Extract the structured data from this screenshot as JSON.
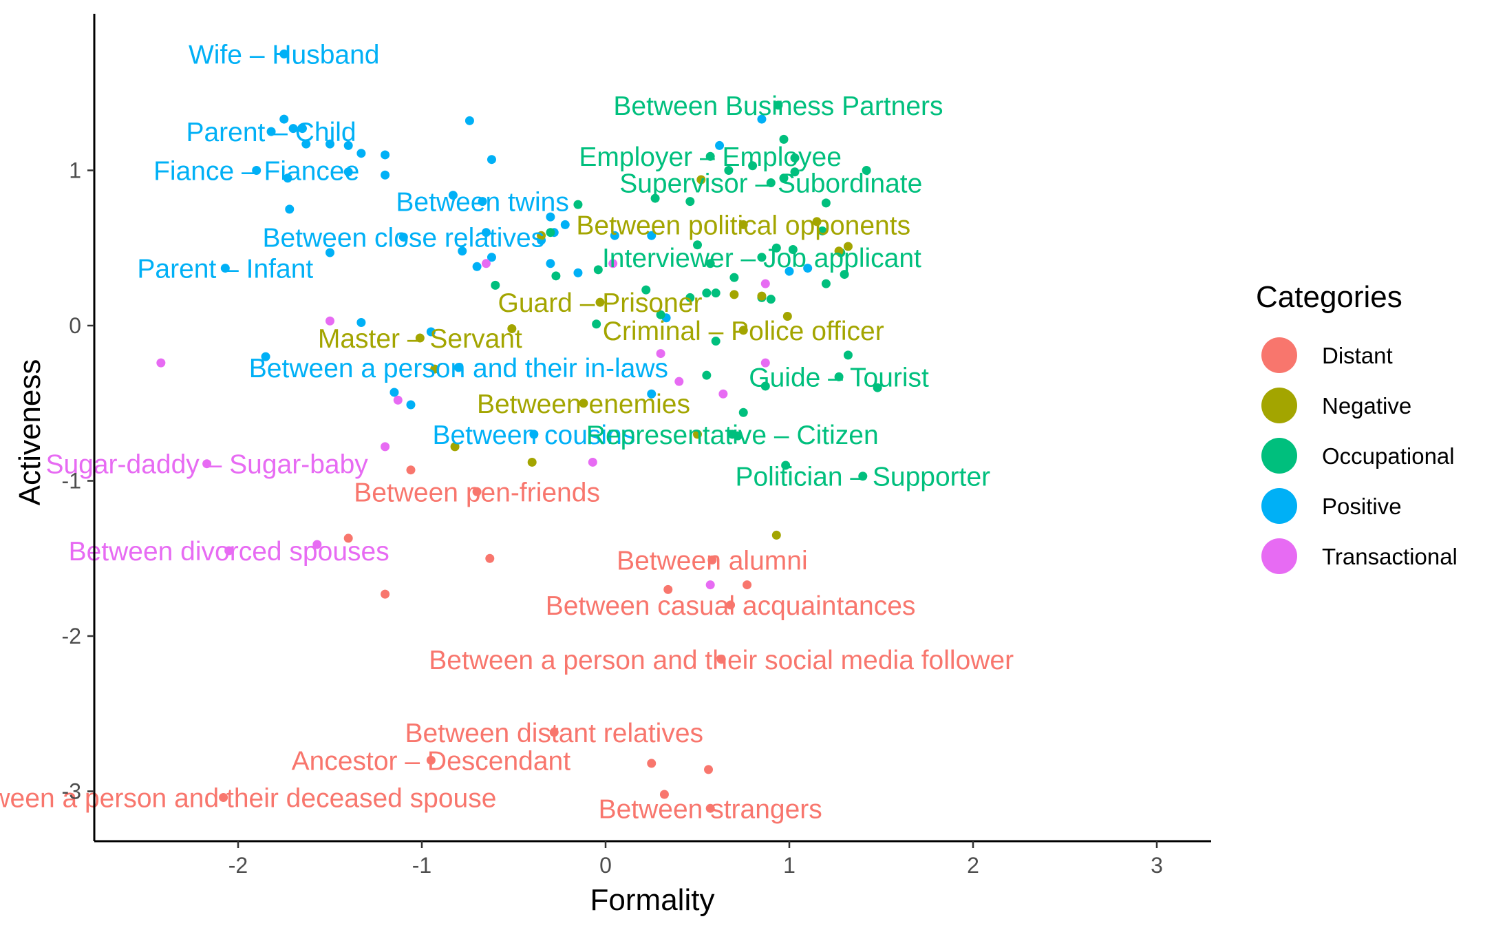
{
  "chart_data": {
    "type": "scatter",
    "title": "",
    "xlabel": "Formality",
    "ylabel": "Activeness",
    "xlim": [
      -2.8,
      3.3
    ],
    "ylim": [
      -3.35,
      2.0
    ],
    "xticks": [
      -2,
      -1,
      0,
      1,
      2,
      3
    ],
    "yticks": [
      -3,
      -2,
      -1,
      0,
      1
    ],
    "xtick_labels": [
      "-2",
      "-1",
      "0",
      "1",
      "2",
      "3"
    ],
    "ytick_labels": [
      "-3",
      "-2",
      "-1",
      "0",
      "1"
    ],
    "grid": false,
    "legend_position": "right",
    "legend": {
      "title": "Categories",
      "entries": [
        {
          "name": "Distant",
          "color": "#F8766D"
        },
        {
          "name": "Negative",
          "color": "#A3A500"
        },
        {
          "name": "Occupational",
          "color": "#00BF7D"
        },
        {
          "name": "Positive",
          "color": "#00B0F6"
        },
        {
          "name": "Transactional",
          "color": "#E76BF3"
        }
      ]
    },
    "labels": [
      {
        "text": "Wife – Husband",
        "category": "Positive",
        "x": -1.75,
        "y": 1.75
      },
      {
        "text": "Parent – Child",
        "category": "Positive",
        "x": -1.82,
        "y": 1.25
      },
      {
        "text": "Fiance – Fiancee",
        "category": "Positive",
        "x": -1.9,
        "y": 1.0
      },
      {
        "text": "Between twins",
        "category": "Positive",
        "x": -0.67,
        "y": 0.8
      },
      {
        "text": "Between close relatives",
        "category": "Positive",
        "x": -1.1,
        "y": 0.57
      },
      {
        "text": "Parent – Infant",
        "category": "Positive",
        "x": -2.07,
        "y": 0.37
      },
      {
        "text": "Between a person and their in-laws",
        "category": "Positive",
        "x": -0.8,
        "y": -0.27
      },
      {
        "text": "Between cousins",
        "category": "Positive",
        "x": -0.39,
        "y": -0.7
      },
      {
        "text": "Between Business Partners",
        "category": "Occupational",
        "x": 0.94,
        "y": 1.42
      },
      {
        "text": "Employer – Employee",
        "category": "Occupational",
        "x": 0.57,
        "y": 1.09
      },
      {
        "text": "Supervisor – Subordinate",
        "category": "Occupational",
        "x": 0.9,
        "y": 0.92
      },
      {
        "text": "Interviewer – Job applicant",
        "category": "Occupational",
        "x": 0.85,
        "y": 0.44
      },
      {
        "text": "Guide – Tourist",
        "category": "Occupational",
        "x": 1.27,
        "y": -0.33
      },
      {
        "text": "Representative – Citizen",
        "category": "Occupational",
        "x": 0.69,
        "y": -0.7
      },
      {
        "text": "Politician – Supporter",
        "category": "Occupational",
        "x": 1.4,
        "y": -0.97
      },
      {
        "text": "Between political opponents",
        "category": "Negative",
        "x": 0.75,
        "y": 0.65
      },
      {
        "text": "Guard – Prisoner",
        "category": "Negative",
        "x": -0.03,
        "y": 0.15
      },
      {
        "text": "Criminal – Police officer",
        "category": "Negative",
        "x": 0.75,
        "y": -0.03
      },
      {
        "text": "Master – Servant",
        "category": "Negative",
        "x": -1.01,
        "y": -0.08
      },
      {
        "text": "Between enemies",
        "category": "Negative",
        "x": -0.12,
        "y": -0.5
      },
      {
        "text": "Sugar-daddy – Sugar-baby",
        "category": "Transactional",
        "x": -2.17,
        "y": -0.89
      },
      {
        "text": "Between divorced spouses",
        "category": "Transactional",
        "x": -2.05,
        "y": -1.45
      },
      {
        "text": "Between pen-friends",
        "category": "Distant",
        "x": -0.7,
        "y": -1.07
      },
      {
        "text": "Between alumni",
        "category": "Distant",
        "x": 0.58,
        "y": -1.51
      },
      {
        "text": "Between casual acquaintances",
        "category": "Distant",
        "x": 0.68,
        "y": -1.8
      },
      {
        "text": "Between a person and their social media follower",
        "category": "Distant",
        "x": 0.63,
        "y": -2.15
      },
      {
        "text": "Between distant relatives",
        "category": "Distant",
        "x": -0.28,
        "y": -2.62
      },
      {
        "text": "Ancestor – Descendant",
        "category": "Distant",
        "x": -0.95,
        "y": -2.8
      },
      {
        "text": "Between a person and their deceased spouse",
        "category": "Distant",
        "x": -2.08,
        "y": -3.04
      },
      {
        "text": "Between strangers",
        "category": "Distant",
        "x": 0.57,
        "y": -3.11
      }
    ],
    "points": [
      {
        "category": "Positive",
        "x": -1.7,
        "y": 1.27
      },
      {
        "category": "Positive",
        "x": -1.75,
        "y": 1.33
      },
      {
        "category": "Positive",
        "x": -1.65,
        "y": 1.27
      },
      {
        "category": "Positive",
        "x": -1.63,
        "y": 1.17
      },
      {
        "category": "Positive",
        "x": -1.5,
        "y": 1.17
      },
      {
        "category": "Positive",
        "x": -1.4,
        "y": 1.16
      },
      {
        "category": "Positive",
        "x": -1.33,
        "y": 1.11
      },
      {
        "category": "Positive",
        "x": -1.2,
        "y": 1.1
      },
      {
        "category": "Positive",
        "x": -1.4,
        "y": 0.99
      },
      {
        "category": "Positive",
        "x": -1.2,
        "y": 0.97
      },
      {
        "category": "Positive",
        "x": -1.73,
        "y": 0.95
      },
      {
        "category": "Positive",
        "x": -1.72,
        "y": 0.75
      },
      {
        "category": "Positive",
        "x": -0.74,
        "y": 1.32
      },
      {
        "category": "Positive",
        "x": -0.62,
        "y": 1.07
      },
      {
        "category": "Positive",
        "x": -0.83,
        "y": 0.84
      },
      {
        "category": "Positive",
        "x": -0.3,
        "y": 0.7
      },
      {
        "category": "Positive",
        "x": -0.22,
        "y": 0.65
      },
      {
        "category": "Positive",
        "x": -0.28,
        "y": 0.6
      },
      {
        "category": "Positive",
        "x": -0.65,
        "y": 0.6
      },
      {
        "category": "Positive",
        "x": -0.35,
        "y": 0.55
      },
      {
        "category": "Positive",
        "x": -0.78,
        "y": 0.48
      },
      {
        "category": "Positive",
        "x": -0.62,
        "y": 0.44
      },
      {
        "category": "Positive",
        "x": -0.7,
        "y": 0.38
      },
      {
        "category": "Positive",
        "x": -1.5,
        "y": 0.47
      },
      {
        "category": "Positive",
        "x": -0.3,
        "y": 0.4
      },
      {
        "category": "Positive",
        "x": -0.15,
        "y": 0.34
      },
      {
        "category": "Positive",
        "x": 0.05,
        "y": 0.58
      },
      {
        "category": "Positive",
        "x": 0.25,
        "y": 0.58
      },
      {
        "category": "Positive",
        "x": 0.62,
        "y": 1.16
      },
      {
        "category": "Positive",
        "x": 0.85,
        "y": 1.33
      },
      {
        "category": "Positive",
        "x": 1.0,
        "y": 0.35
      },
      {
        "category": "Positive",
        "x": 1.1,
        "y": 0.37
      },
      {
        "category": "Positive",
        "x": 0.33,
        "y": 0.05
      },
      {
        "category": "Positive",
        "x": -1.33,
        "y": 0.02
      },
      {
        "category": "Positive",
        "x": -0.95,
        "y": -0.04
      },
      {
        "category": "Positive",
        "x": -1.85,
        "y": -0.2
      },
      {
        "category": "Positive",
        "x": -1.15,
        "y": -0.43
      },
      {
        "category": "Positive",
        "x": -1.06,
        "y": -0.51
      },
      {
        "category": "Positive",
        "x": 0.25,
        "y": -0.44
      },
      {
        "category": "Occupational",
        "x": 0.97,
        "y": 1.2
      },
      {
        "category": "Occupational",
        "x": 1.03,
        "y": 1.08
      },
      {
        "category": "Occupational",
        "x": 0.8,
        "y": 1.03
      },
      {
        "category": "Occupational",
        "x": 0.67,
        "y": 1.0
      },
      {
        "category": "Occupational",
        "x": 1.03,
        "y": 0.99
      },
      {
        "category": "Occupational",
        "x": 1.42,
        "y": 1.0
      },
      {
        "category": "Occupational",
        "x": 0.97,
        "y": 0.95
      },
      {
        "category": "Occupational",
        "x": 0.27,
        "y": 0.82
      },
      {
        "category": "Occupational",
        "x": 0.46,
        "y": 0.8
      },
      {
        "category": "Occupational",
        "x": 1.2,
        "y": 0.79
      },
      {
        "category": "Occupational",
        "x": -0.15,
        "y": 0.78
      },
      {
        "category": "Occupational",
        "x": 1.18,
        "y": 0.61
      },
      {
        "category": "Occupational",
        "x": -0.3,
        "y": 0.6
      },
      {
        "category": "Occupational",
        "x": 0.5,
        "y": 0.52
      },
      {
        "category": "Occupational",
        "x": 0.93,
        "y": 0.5
      },
      {
        "category": "Occupational",
        "x": 1.02,
        "y": 0.49
      },
      {
        "category": "Occupational",
        "x": 1.28,
        "y": 0.47
      },
      {
        "category": "Occupational",
        "x": 0.57,
        "y": 0.4
      },
      {
        "category": "Occupational",
        "x": -0.04,
        "y": 0.36
      },
      {
        "category": "Occupational",
        "x": -0.27,
        "y": 0.32
      },
      {
        "category": "Occupational",
        "x": 0.7,
        "y": 0.31
      },
      {
        "category": "Occupational",
        "x": 1.3,
        "y": 0.33
      },
      {
        "category": "Occupational",
        "x": 1.2,
        "y": 0.27
      },
      {
        "category": "Occupational",
        "x": -0.6,
        "y": 0.26
      },
      {
        "category": "Occupational",
        "x": 0.22,
        "y": 0.23
      },
      {
        "category": "Occupational",
        "x": 0.55,
        "y": 0.21
      },
      {
        "category": "Occupational",
        "x": 0.6,
        "y": 0.21
      },
      {
        "category": "Occupational",
        "x": 0.46,
        "y": 0.18
      },
      {
        "category": "Occupational",
        "x": 0.85,
        "y": 0.18
      },
      {
        "category": "Occupational",
        "x": 0.9,
        "y": 0.17
      },
      {
        "category": "Occupational",
        "x": 0.3,
        "y": 0.07
      },
      {
        "category": "Occupational",
        "x": -0.05,
        "y": 0.01
      },
      {
        "category": "Occupational",
        "x": 0.6,
        "y": -0.1
      },
      {
        "category": "Occupational",
        "x": 1.32,
        "y": -0.19
      },
      {
        "category": "Occupational",
        "x": 0.55,
        "y": -0.32
      },
      {
        "category": "Occupational",
        "x": 0.87,
        "y": -0.39
      },
      {
        "category": "Occupational",
        "x": 1.48,
        "y": -0.4
      },
      {
        "category": "Occupational",
        "x": 0.75,
        "y": -0.56
      },
      {
        "category": "Occupational",
        "x": 0.72,
        "y": -0.71
      },
      {
        "category": "Occupational",
        "x": 0.98,
        "y": -0.9
      },
      {
        "category": "Negative",
        "x": 0.52,
        "y": 0.94
      },
      {
        "category": "Negative",
        "x": 1.15,
        "y": 0.67
      },
      {
        "category": "Negative",
        "x": 1.32,
        "y": 0.51
      },
      {
        "category": "Negative",
        "x": 1.27,
        "y": 0.48
      },
      {
        "category": "Negative",
        "x": -0.35,
        "y": 0.58
      },
      {
        "category": "Negative",
        "x": 0.7,
        "y": 0.2
      },
      {
        "category": "Negative",
        "x": 0.85,
        "y": 0.19
      },
      {
        "category": "Negative",
        "x": 0.99,
        "y": 0.06
      },
      {
        "category": "Negative",
        "x": -0.51,
        "y": -0.02
      },
      {
        "category": "Negative",
        "x": -0.93,
        "y": -0.28
      },
      {
        "category": "Negative",
        "x": -0.82,
        "y": -0.78
      },
      {
        "category": "Negative",
        "x": -0.4,
        "y": -0.88
      },
      {
        "category": "Negative",
        "x": 0.5,
        "y": -0.7
      },
      {
        "category": "Negative",
        "x": 0.93,
        "y": -1.35
      },
      {
        "category": "Transactional",
        "x": -0.65,
        "y": 0.4
      },
      {
        "category": "Transactional",
        "x": 0.04,
        "y": 0.4
      },
      {
        "category": "Transactional",
        "x": 0.87,
        "y": 0.27
      },
      {
        "category": "Transactional",
        "x": -1.5,
        "y": 0.03
      },
      {
        "category": "Transactional",
        "x": 0.3,
        "y": -0.18
      },
      {
        "category": "Transactional",
        "x": 0.87,
        "y": -0.24
      },
      {
        "category": "Transactional",
        "x": -2.42,
        "y": -0.24
      },
      {
        "category": "Transactional",
        "x": 0.4,
        "y": -0.36
      },
      {
        "category": "Transactional",
        "x": 0.64,
        "y": -0.44
      },
      {
        "category": "Transactional",
        "x": -1.13,
        "y": -0.48
      },
      {
        "category": "Transactional",
        "x": -1.2,
        "y": -0.78
      },
      {
        "category": "Transactional",
        "x": -0.07,
        "y": -0.88
      },
      {
        "category": "Transactional",
        "x": -1.57,
        "y": -1.41
      },
      {
        "category": "Transactional",
        "x": 0.57,
        "y": -1.67
      },
      {
        "category": "Distant",
        "x": -1.06,
        "y": -0.93
      },
      {
        "category": "Distant",
        "x": -1.4,
        "y": -1.37
      },
      {
        "category": "Distant",
        "x": -0.63,
        "y": -1.5
      },
      {
        "category": "Distant",
        "x": 0.34,
        "y": -1.7
      },
      {
        "category": "Distant",
        "x": 0.77,
        "y": -1.67
      },
      {
        "category": "Distant",
        "x": -1.2,
        "y": -1.73
      },
      {
        "category": "Distant",
        "x": 0.25,
        "y": -2.82
      },
      {
        "category": "Distant",
        "x": 0.56,
        "y": -2.86
      },
      {
        "category": "Distant",
        "x": 0.32,
        "y": -3.02
      }
    ]
  }
}
